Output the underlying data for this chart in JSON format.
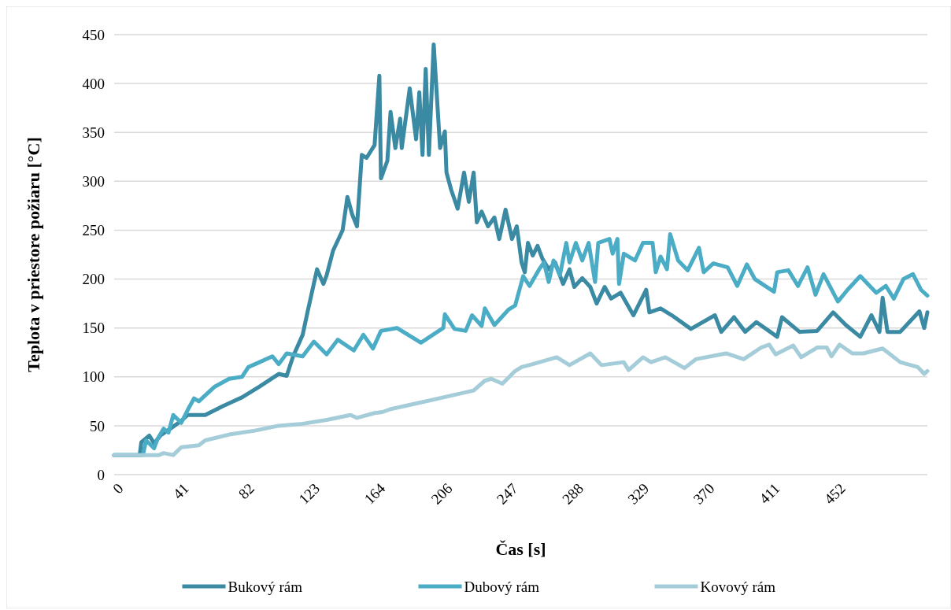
{
  "chart_data": {
    "type": "line",
    "xlabel": "Čas [s]",
    "ylabel": "Teplota v priestore požiaru [°C]",
    "xlim": [
      0,
      509
    ],
    "xticks": [
      0,
      41,
      82,
      123,
      164,
      206,
      247,
      288,
      329,
      370,
      411,
      452
    ],
    "ylim": [
      0,
      450
    ],
    "yticks": [
      0,
      50,
      100,
      150,
      200,
      250,
      300,
      350,
      400,
      450
    ],
    "grid": "y",
    "legend": "bottom",
    "marker": "none",
    "line_style": "solid",
    "series": [
      {
        "name": "Bukový rám",
        "color": "#3b8aa3",
        "x": [
          0,
          16,
          17,
          22,
          25,
          29,
          36,
          42,
          46,
          57,
          68,
          80,
          91,
          103,
          108,
          112,
          118,
          121,
          127,
          131,
          133,
          137,
          143,
          146,
          149,
          152,
          155,
          158,
          163,
          166,
          167,
          171,
          173,
          176,
          179,
          180,
          185,
          189,
          191,
          193,
          195,
          197,
          200,
          204,
          207,
          208,
          211,
          215,
          219,
          222,
          225,
          227,
          230,
          234,
          238,
          241,
          245,
          249,
          252,
          255,
          257,
          259,
          262,
          265,
          268,
          272,
          276,
          281,
          285,
          288,
          293,
          298,
          302,
          307,
          311,
          317,
          325,
          333,
          335,
          342,
          349,
          361,
          376,
          380,
          388,
          395,
          402,
          415,
          418,
          429,
          440,
          450,
          458,
          467,
          474,
          479,
          481,
          484,
          492,
          504,
          507,
          509
        ],
        "values": [
          20,
          20,
          33,
          40,
          32,
          40,
          48,
          55,
          61,
          61,
          70,
          79,
          90,
          103,
          101,
          121,
          143,
          166,
          210,
          195,
          204,
          229,
          250,
          284,
          266,
          254,
          327,
          324,
          337,
          408,
          303,
          321,
          371,
          334,
          364,
          334,
          395,
          343,
          391,
          327,
          415,
          327,
          440,
          334,
          351,
          309,
          291,
          272,
          309,
          279,
          309,
          258,
          269,
          254,
          263,
          241,
          271,
          241,
          254,
          217,
          207,
          237,
          224,
          234,
          221,
          210,
          217,
          195,
          210,
          192,
          201,
          192,
          175,
          192,
          180,
          186,
          163,
          189,
          166,
          170,
          163,
          149,
          163,
          146,
          161,
          146,
          156,
          141,
          161,
          146,
          147,
          166,
          153,
          141,
          163,
          146,
          181,
          146,
          146,
          167,
          150,
          166
        ]
      },
      {
        "name": "Dubový rám",
        "color": "#4bacc6",
        "x": [
          0,
          18,
          20,
          25,
          27,
          31,
          34,
          37,
          42,
          46,
          50,
          53,
          63,
          72,
          80,
          84,
          91,
          99,
          103,
          108,
          118,
          125,
          133,
          140,
          150,
          156,
          162,
          167,
          177,
          192,
          206,
          207,
          213,
          220,
          224,
          230,
          232,
          238,
          247,
          251,
          256,
          260,
          266,
          269,
          272,
          275,
          279,
          283,
          285,
          289,
          293,
          297,
          301,
          303,
          310,
          312,
          315,
          316,
          319,
          326,
          331,
          337,
          339,
          342,
          346,
          348,
          353,
          359,
          366,
          369,
          375,
          384,
          390,
          396,
          401,
          413,
          415,
          422,
          428,
          434,
          439,
          444,
          453,
          459,
          467,
          477,
          483,
          488,
          494,
          500,
          505,
          509
        ],
        "values": [
          20,
          20,
          35,
          27,
          36,
          47,
          43,
          61,
          53,
          66,
          78,
          75,
          90,
          98,
          100,
          110,
          115,
          121,
          113,
          124,
          121,
          136,
          123,
          138,
          127,
          143,
          129,
          147,
          150,
          135,
          150,
          164,
          149,
          147,
          163,
          152,
          170,
          153,
          169,
          173,
          203,
          193,
          210,
          217,
          197,
          219,
          204,
          237,
          217,
          237,
          219,
          237,
          197,
          237,
          241,
          226,
          241,
          195,
          226,
          219,
          237,
          237,
          207,
          223,
          210,
          246,
          219,
          209,
          232,
          207,
          216,
          212,
          193,
          215,
          200,
          187,
          207,
          209,
          193,
          212,
          184,
          205,
          177,
          189,
          203,
          186,
          193,
          180,
          200,
          205,
          189,
          183
        ]
      },
      {
        "name": "Kovový rám",
        "color": "#a5cdd9",
        "x": [
          0,
          28,
          31,
          37,
          42,
          53,
          57,
          72,
          88,
          103,
          118,
          133,
          148,
          152,
          163,
          168,
          173,
          187,
          206,
          225,
          232,
          236,
          243,
          251,
          255,
          262,
          277,
          285,
          298,
          305,
          319,
          322,
          331,
          336,
          345,
          357,
          364,
          383,
          394,
          405,
          410,
          414,
          425,
          430,
          440,
          446,
          449,
          454,
          462,
          469,
          481,
          492,
          503,
          507,
          509
        ],
        "values": [
          20,
          20,
          22,
          20,
          28,
          30,
          35,
          41,
          45,
          50,
          52,
          56,
          61,
          58,
          63,
          64,
          67,
          72,
          79,
          86,
          96,
          98,
          93,
          106,
          110,
          113,
          120,
          112,
          124,
          112,
          115,
          107,
          120,
          115,
          120,
          109,
          118,
          124,
          118,
          130,
          133,
          123,
          132,
          120,
          130,
          130,
          121,
          133,
          124,
          124,
          129,
          115,
          110,
          103,
          106
        ]
      }
    ]
  }
}
